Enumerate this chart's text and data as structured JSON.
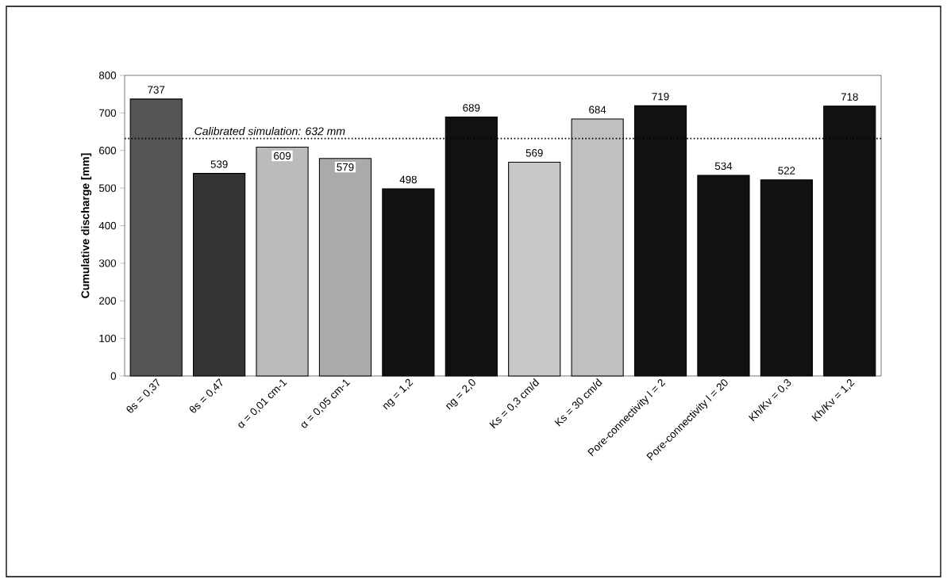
{
  "chart_data": {
    "type": "bar",
    "ylabel": "Cumulative discharge [mm]",
    "categories": [
      "θs = 0,37",
      "θs = 0,47",
      "α = 0,01 cm-1",
      "α = 0,05  cm-1",
      "ng = 1,2",
      "ng = 2,0",
      "Ks = 0,3 cm/d",
      "Ks = 30 cm/d",
      "Pore-connectivity l = 2",
      "Pore-connectivity l = 20",
      "Kh/Kv = 0,3",
      "Kh/Kv = 1,2"
    ],
    "values": [
      737,
      539,
      609,
      579,
      498,
      689,
      569,
      684,
      719,
      534,
      522,
      718
    ],
    "colors": [
      "#555555",
      "#333333",
      "#bbbbbb",
      "#aaaaaa",
      "#111111",
      "#111111",
      "#c8c8c8",
      "#c0c0c0",
      "#111111",
      "#111111",
      "#111111",
      "#111111"
    ],
    "ylim": [
      0,
      800
    ],
    "yticks": [
      0,
      100,
      200,
      300,
      400,
      500,
      600,
      700,
      800
    ],
    "ref_lines": [
      {
        "axis": "y",
        "value": 632,
        "label": "Calibrated simulation: 632 mm",
        "line_style": "dotted",
        "color": "#000000"
      }
    ],
    "data_labels": true
  }
}
